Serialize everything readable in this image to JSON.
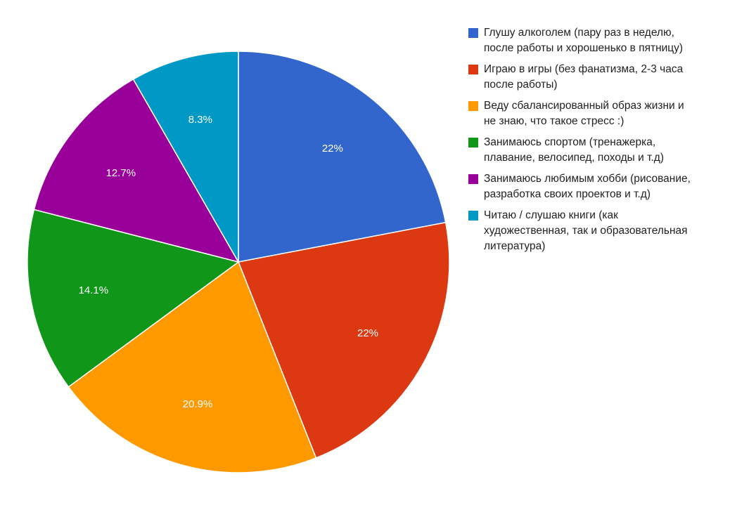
{
  "chart_data": {
    "type": "pie",
    "title": "",
    "legend_position": "right",
    "slices": [
      {
        "name": "Глушу алкоголем (пару раз в неделю,\nпосле работы и хорошенько в пятницу)",
        "value": 22.0,
        "label": "22%",
        "color": "#3366cc"
      },
      {
        "name": "Играю в игры (без фанатизма, 2-3 часа\nпосле работы)",
        "value": 22.0,
        "label": "22%",
        "color": "#dc3912"
      },
      {
        "name": "Веду сбалансированный образ жизни и\nне знаю, что такое стресс :)",
        "value": 20.9,
        "label": "20.9%",
        "color": "#ff9900"
      },
      {
        "name": "Занимаюсь спортом (тренажерка,\nплавание, велосипед, походы и т.д)",
        "value": 14.1,
        "label": "14.1%",
        "color": "#109618"
      },
      {
        "name": "Занимаюсь любимым хобби (рисование,\nразработка своих проектов и т.д)",
        "value": 12.7,
        "label": "12.7%",
        "color": "#990099"
      },
      {
        "name": "Читаю / слушаю книги (как\nхудожественная, так и образовательная\nлитература)",
        "value": 8.3,
        "label": "8.3%",
        "color": "#0099c6"
      }
    ]
  }
}
